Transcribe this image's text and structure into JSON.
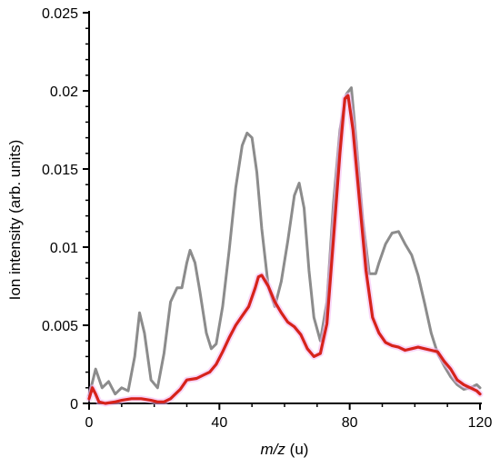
{
  "chart_data": {
    "type": "line",
    "xlabel_italic": "m/z",
    "xlabel_rest": " (u)",
    "ylabel": "Ion intensity (arb. units)",
    "xlim": [
      0,
      120
    ],
    "ylim": [
      0,
      0.025
    ],
    "xticks": [
      0,
      40,
      80,
      120
    ],
    "xtick_labels": [
      "0",
      "40",
      "80",
      "120"
    ],
    "yticks": [
      0,
      0.005,
      0.01,
      0.015,
      0.02,
      0.025
    ],
    "ytick_labels": [
      "0",
      "0.005",
      "0.01",
      "0.015",
      "0.02",
      "0.025"
    ],
    "grid": false,
    "series": [
      {
        "color": "#8c8c8c",
        "x": [
          0,
          2,
          4,
          6,
          8,
          10,
          12,
          14,
          15.5,
          17,
          19,
          21,
          23,
          25,
          27,
          28.5,
          30,
          31,
          32.5,
          34,
          36,
          37.5,
          39,
          41,
          43,
          45,
          47,
          48.5,
          50,
          51.5,
          53,
          55,
          57,
          59,
          61,
          63,
          64.5,
          66,
          67.5,
          69,
          71,
          73,
          75,
          77,
          79,
          80.5,
          82,
          84,
          86,
          88,
          89,
          91,
          93,
          95,
          97,
          99,
          101,
          103,
          105,
          107,
          109,
          111,
          113,
          115,
          117,
          119,
          120
        ],
        "y": [
          0.0005,
          0.0022,
          0.001,
          0.0014,
          0.0006,
          0.001,
          0.0008,
          0.003,
          0.0058,
          0.0045,
          0.0015,
          0.001,
          0.0032,
          0.0065,
          0.0074,
          0.0074,
          0.009,
          0.0098,
          0.009,
          0.0072,
          0.0045,
          0.0035,
          0.0038,
          0.0062,
          0.0098,
          0.0138,
          0.0165,
          0.0173,
          0.017,
          0.0148,
          0.0112,
          0.0075,
          0.0062,
          0.0078,
          0.0104,
          0.0133,
          0.0141,
          0.0125,
          0.0085,
          0.0055,
          0.004,
          0.0065,
          0.0128,
          0.0175,
          0.0198,
          0.0202,
          0.0168,
          0.0118,
          0.0083,
          0.0083,
          0.009,
          0.0102,
          0.0109,
          0.011,
          0.0102,
          0.0095,
          0.0082,
          0.0064,
          0.0045,
          0.0032,
          0.0024,
          0.0017,
          0.0012,
          0.0009,
          0.001,
          0.0012,
          0.001
        ]
      },
      {
        "color": "#d7221b",
        "x": [
          0,
          1,
          2,
          3,
          5,
          8,
          10,
          13,
          16,
          19,
          21,
          23,
          25,
          28,
          30,
          33,
          35,
          37,
          39,
          41,
          43,
          45,
          47,
          49,
          51,
          52,
          53,
          55,
          57,
          59,
          61,
          63,
          65,
          67,
          69,
          71,
          73,
          75,
          77,
          78.5,
          79.5,
          81,
          83,
          85,
          87,
          89,
          91,
          93,
          95,
          97,
          99,
          101,
          103,
          105,
          107,
          109,
          111,
          113,
          115,
          117,
          119,
          120
        ],
        "y": [
          0.0003,
          0.001,
          0.0006,
          0.0001,
          0.0,
          0.0001,
          0.0002,
          0.0003,
          0.0003,
          0.0002,
          0.0001,
          0.0001,
          0.0003,
          0.0009,
          0.0015,
          0.0016,
          0.0018,
          0.002,
          0.0025,
          0.0033,
          0.0042,
          0.005,
          0.0056,
          0.0062,
          0.0074,
          0.0081,
          0.0082,
          0.0075,
          0.0065,
          0.0058,
          0.0052,
          0.0049,
          0.0044,
          0.0035,
          0.003,
          0.0032,
          0.0051,
          0.0105,
          0.016,
          0.0195,
          0.0197,
          0.0175,
          0.013,
          0.0085,
          0.0055,
          0.0045,
          0.0039,
          0.0037,
          0.0036,
          0.0034,
          0.0035,
          0.0036,
          0.0035,
          0.0034,
          0.0033,
          0.0027,
          0.0022,
          0.0015,
          0.0012,
          0.001,
          0.0008,
          0.0006
        ]
      }
    ]
  }
}
